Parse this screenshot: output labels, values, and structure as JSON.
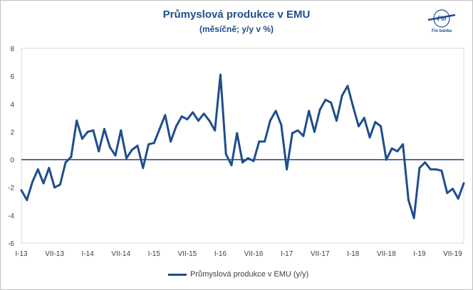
{
  "colors": {
    "series": "#1f4e8c",
    "zero_line": "#1f3f73",
    "grid": "#d9d9d9",
    "title": "#1f4e8c"
  },
  "logo": {
    "icon": "fio-banka-logo",
    "mark": "Fio",
    "text": "Fio banka"
  },
  "chart_data": {
    "type": "line",
    "title": "Průmyslová produkce v EMU",
    "subtitle": "(měsíčně; y/y v %)",
    "xlabel": "",
    "ylabel": "",
    "ylim": [
      -6,
      8
    ],
    "yticks": [
      -6,
      -4,
      -2,
      0,
      2,
      4,
      6,
      8
    ],
    "grid": false,
    "legend": "bottom",
    "x_start": "2013-01",
    "xtick_labels": [
      "I-13",
      "VII-13",
      "I-14",
      "VII-14",
      "I-15",
      "VII-15",
      "I-16",
      "VII-16",
      "I-17",
      "VII-17",
      "I-18",
      "VII-18",
      "I-19",
      "VII-19"
    ],
    "series": [
      {
        "name": "Průmyslová produkce v EMU (y/y)",
        "values": [
          -2.2,
          -2.9,
          -1.6,
          -0.7,
          -1.7,
          -0.6,
          -2.0,
          -1.8,
          -0.2,
          0.2,
          2.8,
          1.5,
          2.0,
          2.1,
          0.6,
          2.2,
          0.9,
          0.3,
          2.1,
          0.1,
          0.7,
          1.0,
          -0.6,
          1.1,
          1.2,
          2.2,
          3.2,
          1.3,
          2.4,
          3.1,
          2.9,
          3.4,
          2.8,
          3.3,
          2.8,
          2.1,
          6.1,
          0.4,
          -0.4,
          1.9,
          -0.2,
          0.1,
          -0.1,
          1.3,
          1.3,
          2.8,
          3.5,
          2.5,
          -0.7,
          1.9,
          2.1,
          1.7,
          3.5,
          2.0,
          3.6,
          4.3,
          4.1,
          2.8,
          4.6,
          5.3,
          3.8,
          2.4,
          3.0,
          1.6,
          2.7,
          2.4,
          0.0,
          0.8,
          0.6,
          1.1,
          -2.9,
          -4.2,
          -0.6,
          -0.2,
          -0.7,
          -0.7,
          -0.8,
          -2.4,
          -2.1,
          -2.8,
          -1.7
        ]
      }
    ]
  }
}
